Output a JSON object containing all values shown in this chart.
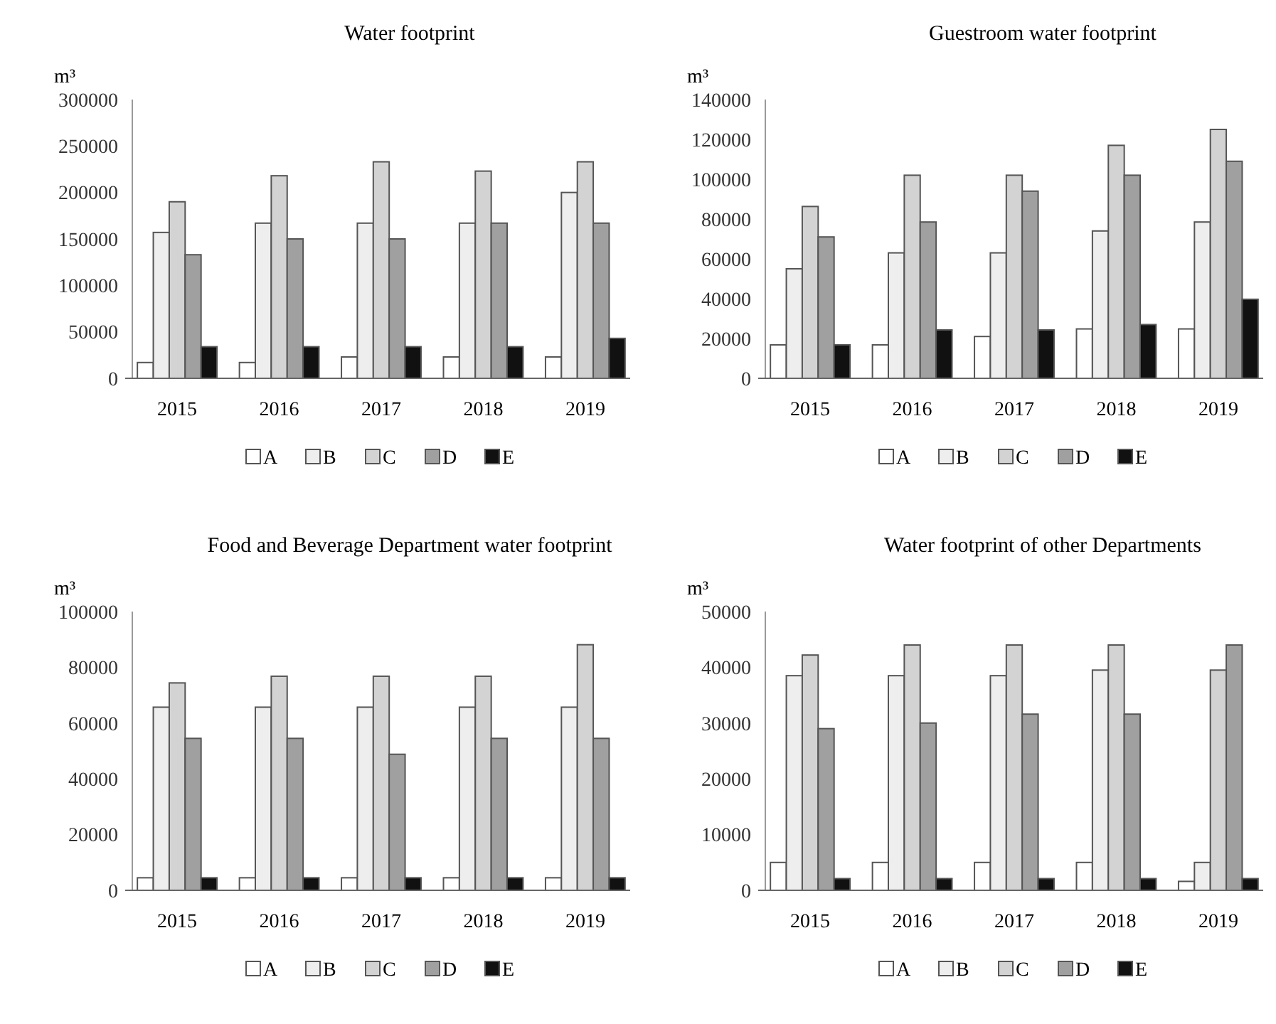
{
  "chart_data": [
    {
      "type": "bar",
      "title": "Water footprint",
      "ylabel": "m³",
      "categories": [
        "2015",
        "2016",
        "2017",
        "2018",
        "2019"
      ],
      "ylim": [
        0,
        300000
      ],
      "yticks": [
        0,
        50000,
        100000,
        150000,
        200000,
        250000,
        300000
      ],
      "grid": false,
      "legend": "bottom",
      "series": [
        {
          "name": "A",
          "color": "#ffffff",
          "values": [
            17000,
            17000,
            23000,
            23000,
            23000
          ]
        },
        {
          "name": "B",
          "color": "#eeeeee",
          "values": [
            157000,
            167000,
            167000,
            167000,
            200000
          ]
        },
        {
          "name": "C",
          "color": "#d3d3d3",
          "values": [
            190000,
            218000,
            233000,
            223000,
            233000
          ]
        },
        {
          "name": "D",
          "color": "#a0a0a0",
          "values": [
            133000,
            150000,
            150000,
            167000,
            167000
          ]
        },
        {
          "name": "E",
          "color": "#111111",
          "values": [
            34000,
            34000,
            34000,
            34000,
            43000
          ]
        }
      ]
    },
    {
      "type": "bar",
      "title": "Guestroom water footprint",
      "ylabel": "m³",
      "categories": [
        "2015",
        "2016",
        "2017",
        "2018",
        "2019"
      ],
      "ylim": [
        0,
        140000
      ],
      "yticks": [
        0,
        20000,
        40000,
        60000,
        80000,
        100000,
        120000,
        140000
      ],
      "grid": false,
      "legend": "bottom",
      "series": [
        {
          "name": "A",
          "color": "#ffffff",
          "values": [
            16800,
            16800,
            21000,
            24800,
            24800
          ]
        },
        {
          "name": "B",
          "color": "#eeeeee",
          "values": [
            55000,
            63000,
            63000,
            74000,
            78500
          ]
        },
        {
          "name": "C",
          "color": "#d3d3d3",
          "values": [
            86300,
            102000,
            102000,
            117000,
            125000
          ]
        },
        {
          "name": "D",
          "color": "#a0a0a0",
          "values": [
            71000,
            78500,
            94000,
            102000,
            109000
          ]
        },
        {
          "name": "E",
          "color": "#111111",
          "values": [
            16800,
            24300,
            24300,
            27000,
            39700
          ]
        }
      ]
    },
    {
      "type": "bar",
      "title": "Food and Beverage Department water footprint",
      "ylabel": "m³",
      "categories": [
        "2015",
        "2016",
        "2017",
        "2018",
        "2019"
      ],
      "ylim": [
        0,
        100000
      ],
      "yticks": [
        0,
        20000,
        40000,
        60000,
        80000,
        100000
      ],
      "grid": false,
      "legend": "bottom",
      "series": [
        {
          "name": "A",
          "color": "#ffffff",
          "values": [
            4500,
            4500,
            4500,
            4500,
            4500
          ]
        },
        {
          "name": "B",
          "color": "#eeeeee",
          "values": [
            65700,
            65700,
            65700,
            65700,
            65700
          ]
        },
        {
          "name": "C",
          "color": "#d3d3d3",
          "values": [
            74400,
            76800,
            76800,
            76800,
            88100
          ]
        },
        {
          "name": "D",
          "color": "#a0a0a0",
          "values": [
            54500,
            54500,
            48800,
            54500,
            54500
          ]
        },
        {
          "name": "E",
          "color": "#111111",
          "values": [
            4500,
            4500,
            4500,
            4500,
            4500
          ]
        }
      ]
    },
    {
      "type": "bar",
      "title": "Water footprint of other Departments",
      "ylabel": "m³",
      "categories": [
        "2015",
        "2016",
        "2017",
        "2018",
        "2019"
      ],
      "ylim": [
        0,
        50000
      ],
      "yticks": [
        0,
        10000,
        20000,
        30000,
        40000,
        50000
      ],
      "grid": false,
      "legend": "bottom",
      "series": [
        {
          "name": "A",
          "color": "#ffffff",
          "values": [
            5000,
            5000,
            5000,
            5000,
            1600
          ]
        },
        {
          "name": "B",
          "color": "#eeeeee",
          "values": [
            38500,
            38500,
            38500,
            39500,
            5000
          ]
        },
        {
          "name": "C",
          "color": "#d3d3d3",
          "values": [
            42200,
            44000,
            44000,
            44000,
            39500
          ]
        },
        {
          "name": "D",
          "color": "#a0a0a0",
          "values": [
            29000,
            30000,
            31600,
            31600,
            44000
          ]
        },
        {
          "name": "E",
          "color": "#111111",
          "values": [
            2100,
            2100,
            2100,
            2100,
            2100
          ]
        }
      ]
    }
  ]
}
